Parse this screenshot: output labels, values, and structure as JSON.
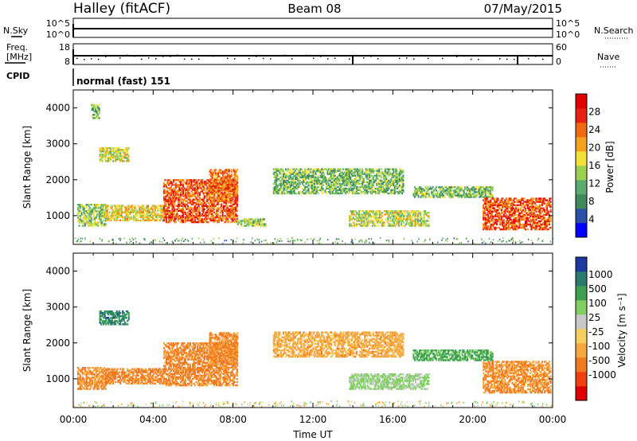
{
  "header": {
    "station": "Halley (fitACF)",
    "beam": "Beam 08",
    "date": "07/May/2015"
  },
  "status_panels": {
    "nsky_label": "N.Sky",
    "nsearch_label": "N.Search",
    "freq_label_line1": "Freq.",
    "freq_label_line2": "[MHz]",
    "nave_label": "Nave",
    "cpid_label": "CPID",
    "cpid_value": "normal (fast) 151",
    "nsky_ticks": [
      "10^5",
      "10^0"
    ],
    "nsearch_ticks": [
      "10^5",
      "10^0"
    ],
    "freq_ticks": [
      "18",
      "8"
    ],
    "nave_ticks": [
      "60",
      "0"
    ]
  },
  "colors": {
    "power_scale": [
      "#0000ff",
      "#2a4fa8",
      "#3d8a5a",
      "#5aab6e",
      "#9bd04f",
      "#f5e03a",
      "#f5a020",
      "#f06a10",
      "#e82010",
      "#e00000"
    ],
    "velocity_scale": [
      "#e00000",
      "#f04010",
      "#f07a20",
      "#f5a840",
      "#f5d060",
      "#c8c8c8",
      "#7fd060",
      "#3aa050",
      "#2a7a70",
      "#1a3aa0"
    ]
  },
  "chart_data": [
    {
      "type": "heatmap",
      "panel": "power",
      "xlabel": "",
      "ylabel": "Slant Range [km]",
      "yticks": [
        "1000",
        "2000",
        "3000",
        "4000"
      ],
      "ylim": [
        200,
        4500
      ],
      "xlim": [
        "00:00",
        "24:00"
      ],
      "colorbar": {
        "label": "Power [dB]",
        "ticks": [
          "4",
          "8",
          "12",
          "16",
          "20",
          "24",
          "28"
        ],
        "range": [
          0,
          32
        ]
      },
      "echo_regions": [
        {
          "t_start": 0.2,
          "t_end": 1.6,
          "r_min": 700,
          "r_max": 1300,
          "level": 14
        },
        {
          "t_start": 1.6,
          "t_end": 4.5,
          "r_min": 850,
          "r_max": 1300,
          "level": 18
        },
        {
          "t_start": 4.5,
          "t_end": 8.2,
          "r_min": 800,
          "r_max": 2000,
          "level": 26
        },
        {
          "t_start": 6.8,
          "t_end": 8.2,
          "r_min": 1400,
          "r_max": 2300,
          "level": 24
        },
        {
          "t_start": 8.2,
          "t_end": 9.6,
          "r_min": 700,
          "r_max": 900,
          "level": 14
        },
        {
          "t_start": 1.3,
          "t_end": 2.8,
          "r_min": 2500,
          "r_max": 2900,
          "level": 16
        },
        {
          "t_start": 0.9,
          "t_end": 1.3,
          "r_min": 3700,
          "r_max": 4100,
          "level": 12
        },
        {
          "t_start": 10.0,
          "t_end": 16.5,
          "r_min": 1600,
          "r_max": 2300,
          "level": 12
        },
        {
          "t_start": 13.8,
          "t_end": 17.8,
          "r_min": 700,
          "r_max": 1150,
          "level": 16
        },
        {
          "t_start": 17.0,
          "t_end": 21.0,
          "r_min": 1500,
          "r_max": 1800,
          "level": 12
        },
        {
          "t_start": 20.5,
          "t_end": 23.9,
          "r_min": 600,
          "r_max": 1500,
          "level": 26
        }
      ]
    },
    {
      "type": "heatmap",
      "panel": "velocity",
      "xlabel": "Time UT",
      "ylabel": "Slant Range [km]",
      "yticks": [
        "1000",
        "2000",
        "3000",
        "4000"
      ],
      "ylim": [
        200,
        4500
      ],
      "xticks": [
        "00:00",
        "04:00",
        "08:00",
        "12:00",
        "16:00",
        "20:00",
        "00:00"
      ],
      "colorbar": {
        "label": "Velocity [m s⁻¹]",
        "ticks": [
          "1000",
          "500",
          "100",
          "25",
          "-25",
          "-100",
          "-500",
          "-1000"
        ]
      },
      "echo_regions": [
        {
          "t_start": 0.2,
          "t_end": 1.6,
          "r_min": 700,
          "r_max": 1300,
          "level": -100
        },
        {
          "t_start": 1.6,
          "t_end": 4.5,
          "r_min": 850,
          "r_max": 1300,
          "level": -150
        },
        {
          "t_start": 4.5,
          "t_end": 8.2,
          "r_min": 800,
          "r_max": 2000,
          "level": -150
        },
        {
          "t_start": 6.8,
          "t_end": 8.2,
          "r_min": 1400,
          "r_max": 2300,
          "level": -120
        },
        {
          "t_start": 1.3,
          "t_end": 2.8,
          "r_min": 2500,
          "r_max": 2900,
          "level": 600
        },
        {
          "t_start": 10.0,
          "t_end": 16.5,
          "r_min": 1600,
          "r_max": 2300,
          "level": -60
        },
        {
          "t_start": 13.8,
          "t_end": 17.8,
          "r_min": 700,
          "r_max": 1150,
          "level": 40
        },
        {
          "t_start": 17.0,
          "t_end": 21.0,
          "r_min": 1500,
          "r_max": 1800,
          "level": 150
        },
        {
          "t_start": 20.5,
          "t_end": 23.9,
          "r_min": 600,
          "r_max": 1500,
          "level": -100
        }
      ]
    }
  ]
}
